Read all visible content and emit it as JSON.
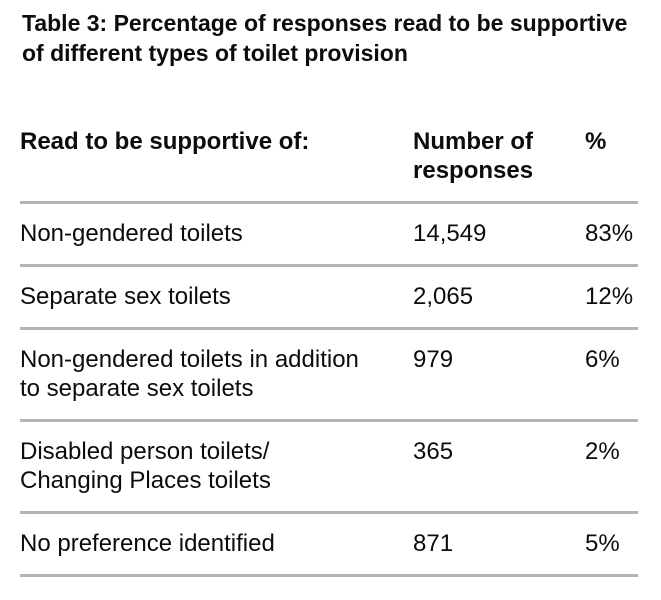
{
  "title": "Table 3: Percentage of responses read to be supportive\nof different types of toilet provision",
  "table": {
    "columns": [
      {
        "label": "Read to be supportive of:"
      },
      {
        "label": "Number of\nresponses"
      },
      {
        "label": "%"
      }
    ],
    "rows": [
      {
        "label": "Non-gendered toilets",
        "responses": "14,549",
        "percent": "83%"
      },
      {
        "label": "Separate sex toilets",
        "responses": "2,065",
        "percent": "12%"
      },
      {
        "label": "Non-gendered toilets in addition\nto separate sex toilets",
        "responses": "979",
        "percent": "6%"
      },
      {
        "label": "Disabled person toilets/\nChanging Places toilets",
        "responses": "365",
        "percent": "2%"
      },
      {
        "label": "No preference identified",
        "responses": "871",
        "percent": "5%"
      }
    ]
  },
  "colors": {
    "text": "#0b0c0c",
    "divider": "#b1b4b6",
    "background": "#ffffff"
  }
}
